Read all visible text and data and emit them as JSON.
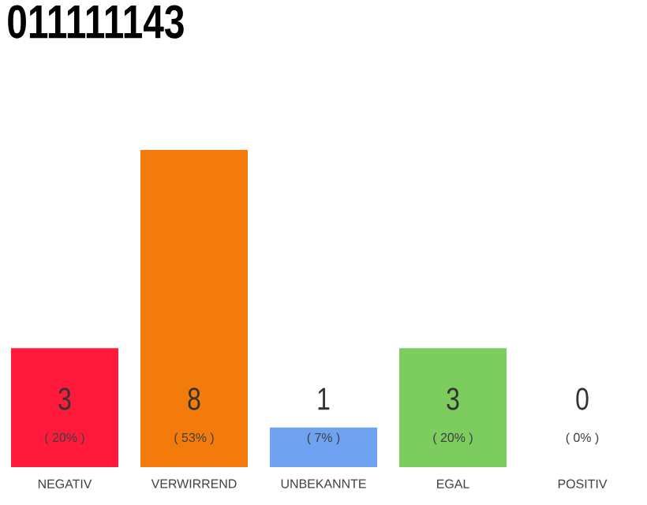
{
  "chart_data": {
    "type": "bar",
    "title": "011111143",
    "categories": [
      "NEGATIV",
      "VERWIRREND",
      "UNBEKANNTE",
      "EGAL",
      "POSITIV"
    ],
    "values": [
      3,
      8,
      1,
      3,
      0
    ],
    "colors": [
      "#ff1a3c",
      "#f27b0b",
      "#6fa3f2",
      "#7dcc60",
      "#7dcc60"
    ],
    "data_labels": true,
    "annotations": [
      "( 20% )",
      "( 53% )",
      "( 7% )",
      "( 20% )",
      "( 0% )"
    ]
  }
}
